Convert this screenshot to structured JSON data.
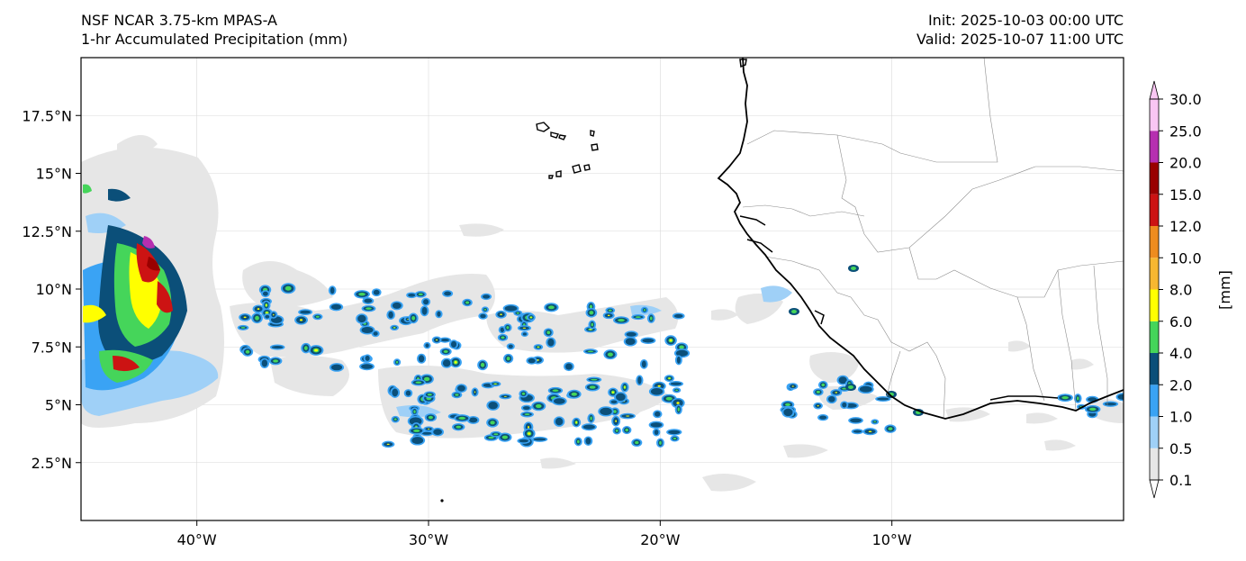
{
  "header": {
    "left_line1": "NSF NCAR 3.75-km MPAS-A",
    "left_line2": "1-hr Accumulated Precipitation (mm)",
    "right_line1": "Init: 2025-10-03 00:00 UTC",
    "right_line2": "Valid: 2025-10-07 11:00 UTC"
  },
  "map": {
    "lon_range": [
      -45,
      0
    ],
    "lat_range": [
      0,
      20
    ],
    "lat_ticks": [
      {
        "value": 17.5,
        "label": "17.5°N"
      },
      {
        "value": 15,
        "label": "15°N"
      },
      {
        "value": 12.5,
        "label": "12.5°N"
      },
      {
        "value": 10,
        "label": "10°N"
      },
      {
        "value": 7.5,
        "label": "7.5°N"
      },
      {
        "value": 5,
        "label": "5°N"
      },
      {
        "value": 2.5,
        "label": "2.5°N"
      }
    ],
    "lon_ticks": [
      {
        "value": -40,
        "label": "40°W"
      },
      {
        "value": -30,
        "label": "30°W"
      },
      {
        "value": -20,
        "label": "20°W"
      },
      {
        "value": -10,
        "label": "10°W"
      }
    ]
  },
  "colorbar": {
    "unit": "[mm]",
    "levels": [
      "0.1",
      "0.5",
      "1.0",
      "2.0",
      "4.0",
      "6.0",
      "8.0",
      "10.0",
      "12.0",
      "15.0",
      "20.0",
      "25.0",
      "30.0"
    ],
    "colors": [
      "#e6e6e6",
      "#9fd0f7",
      "#3aa3f4",
      "#0b4f79",
      "#45d55a",
      "#ffff00",
      "#f7b731",
      "#ee8c1f",
      "#cc1313",
      "#990000",
      "#b62fb0",
      "#f9c6f3"
    ],
    "extend_low_color": "#ffffff",
    "extend_high_color": "#f9c6f3"
  },
  "colors": {
    "coast": "#000000",
    "border": "#8c8c8c",
    "grid": "#d9d9d9",
    "light_precip": "#e6e6e6"
  }
}
